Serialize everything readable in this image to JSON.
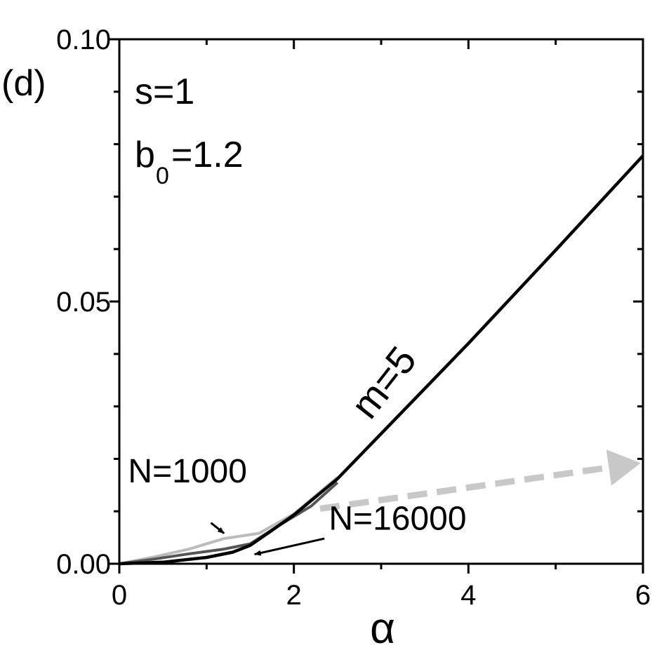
{
  "panel_label": "(d)",
  "params": {
    "s": "s=1",
    "b_main": "b",
    "b_sub": "0",
    "b_rest": "=1.2"
  },
  "colors": {
    "axis": "#000000",
    "curve_large_N": "#000000",
    "curve_mid_N": "#555555",
    "curve_small_N": "#bbbbbb",
    "arrow": "#c8c8c8"
  },
  "chart_data": {
    "type": "line",
    "title": "",
    "xlabel": "α",
    "ylabel": "",
    "xlim": [
      0,
      6
    ],
    "ylim": [
      0,
      0.1
    ],
    "x_ticks": [
      0,
      2,
      4,
      6
    ],
    "x_tick_labels": [
      "0",
      "2",
      "4",
      "6"
    ],
    "y_ticks": [
      0,
      0.05,
      0.1
    ],
    "y_tick_labels": [
      "0.00",
      "0.05",
      "0.10"
    ],
    "x_minor_ticks": [
      1,
      3,
      5
    ],
    "y_minor_ticks": [
      0.01,
      0.02,
      0.03,
      0.04,
      0.06,
      0.07,
      0.08,
      0.09
    ],
    "grid": false,
    "series": [
      {
        "name": "N=1000",
        "color": "#bbbbbb",
        "x": [
          0,
          0.4,
          0.8,
          1.2,
          1.6,
          2.0,
          2.5
        ],
        "y": [
          0,
          0.0013,
          0.0028,
          0.0048,
          0.0058,
          0.0095,
          0.0165
        ]
      },
      {
        "name": "",
        "color": "#555555",
        "x": [
          0,
          0.4,
          0.8,
          1.2,
          1.5,
          1.8,
          2.2,
          2.5
        ],
        "y": [
          0,
          0.0009,
          0.0019,
          0.0028,
          0.0038,
          0.007,
          0.011,
          0.0155
        ]
      },
      {
        "name": "N=16000",
        "color": "#000000",
        "x": [
          0,
          0.5,
          1.0,
          1.3,
          1.5,
          1.7,
          2.0,
          2.5,
          3.0,
          4.0,
          5.0,
          6.0
        ],
        "y": [
          0,
          0.0003,
          0.0012,
          0.0022,
          0.0035,
          0.0058,
          0.0093,
          0.0162,
          0.0248,
          0.042,
          0.0598,
          0.0778
        ]
      }
    ],
    "annotations": [
      {
        "text": "m=5",
        "x": 3.15,
        "y": 0.033,
        "rotate": -52
      },
      {
        "text": "N=1000",
        "x": 0.1,
        "y": 0.0155
      },
      {
        "text": "N=16000",
        "x": 2.4,
        "y": 0.0065
      }
    ],
    "arrows": [
      {
        "name": "N=1000",
        "from": [
          1.05,
          0.0078
        ],
        "to": [
          1.2,
          0.0058
        ]
      },
      {
        "name": "N=16000",
        "from": [
          2.35,
          0.0048
        ],
        "to": [
          1.55,
          0.0018
        ]
      }
    ],
    "trend_arrow": {
      "from": [
        2.3,
        0.0105
      ],
      "to": [
        6.2,
        0.0197
      ],
      "style": "dashed"
    }
  }
}
